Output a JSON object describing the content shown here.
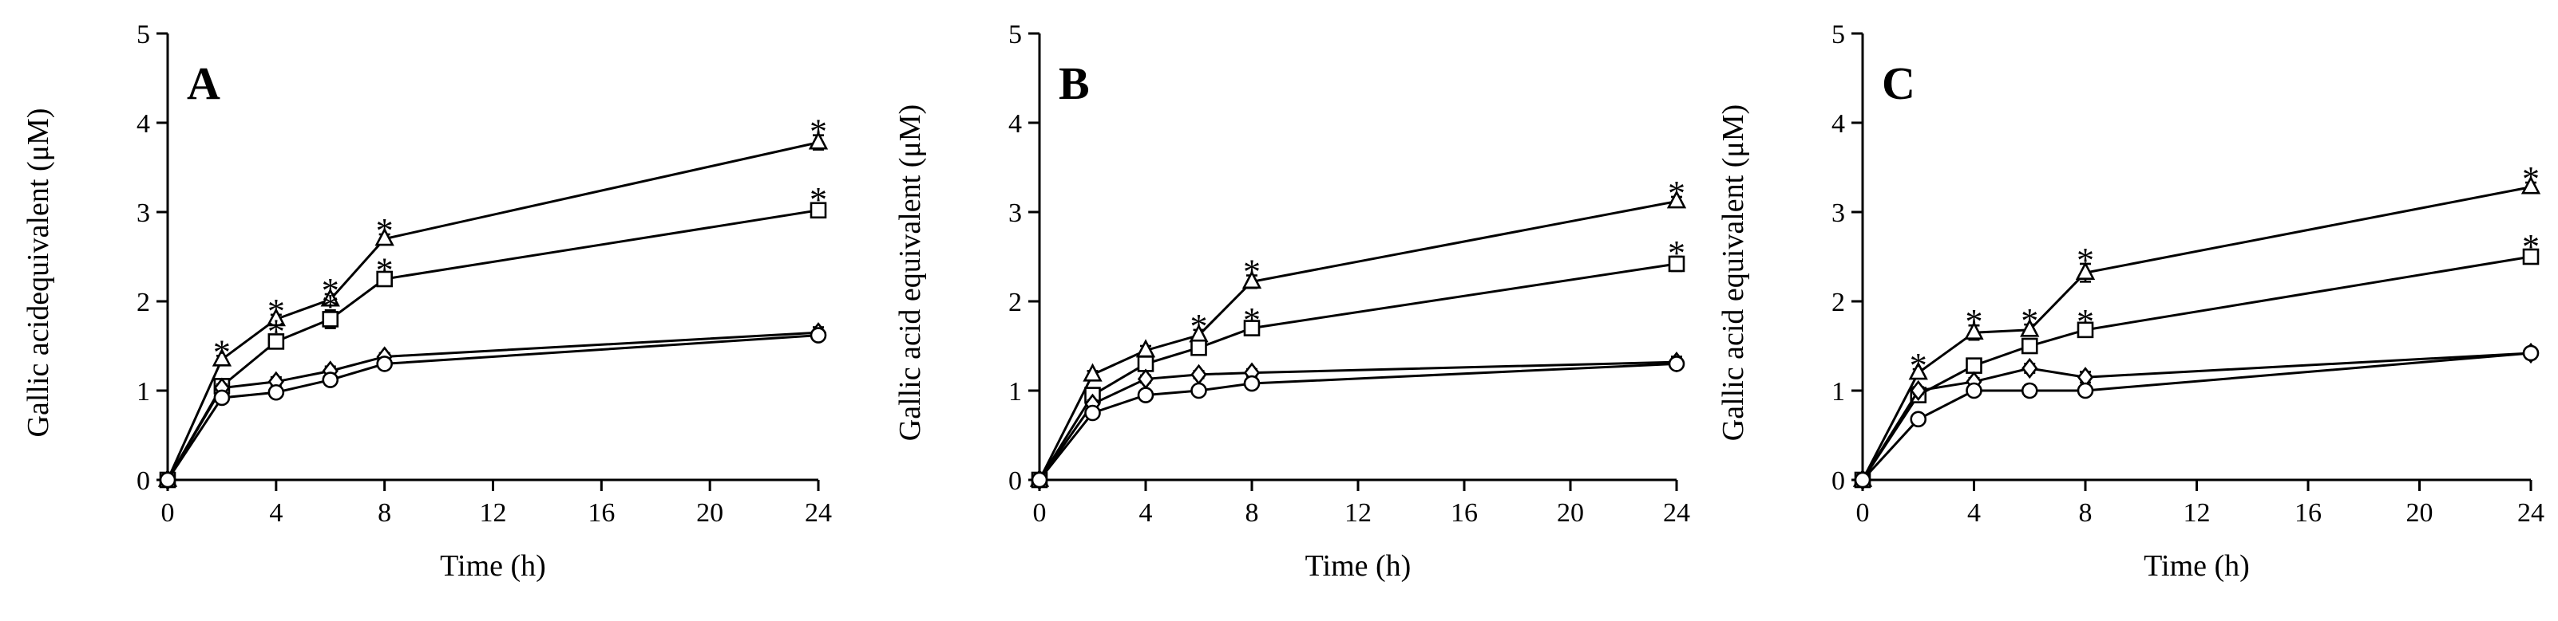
{
  "chart_data": [
    {
      "type": "line",
      "panel": "A",
      "xlabel": "Time (h)",
      "ylabel": "Gallic acidequivalent (μM)",
      "xlim": [
        0,
        24
      ],
      "ylim": [
        0,
        5
      ],
      "x_ticks": [
        "0",
        "4",
        "8",
        "12",
        "16",
        "20",
        "24"
      ],
      "y_ticks": [
        "0",
        "1",
        "2",
        "3",
        "4",
        "5"
      ],
      "x": [
        0,
        2,
        4,
        6,
        8,
        24
      ],
      "series": [
        {
          "name": "triangle",
          "marker": "triangle",
          "values": [
            0,
            1.35,
            1.8,
            2.02,
            2.7,
            3.78
          ],
          "errors": [
            0,
            0.04,
            0.05,
            0.06,
            0.05,
            0.08
          ],
          "significant": [
            false,
            true,
            true,
            true,
            true,
            true
          ]
        },
        {
          "name": "square",
          "marker": "square",
          "values": [
            0,
            1.05,
            1.55,
            1.8,
            2.25,
            3.02
          ],
          "errors": [
            0,
            0.05,
            0.07,
            0.1,
            0.06,
            0.08
          ],
          "significant": [
            false,
            false,
            true,
            true,
            true,
            true
          ]
        },
        {
          "name": "diamond",
          "marker": "diamond",
          "values": [
            0,
            1.03,
            1.1,
            1.22,
            1.38,
            1.65
          ],
          "errors": [
            0,
            0.04,
            0.05,
            0.05,
            0.04,
            0.06
          ],
          "significant": [
            false,
            false,
            false,
            false,
            false,
            false
          ]
        },
        {
          "name": "circle",
          "marker": "circle",
          "values": [
            0,
            0.92,
            0.98,
            1.12,
            1.3,
            1.62
          ],
          "errors": [
            0,
            0.04,
            0.05,
            0.05,
            0.04,
            0.05
          ],
          "significant": [
            false,
            false,
            false,
            false,
            false,
            false
          ]
        }
      ],
      "annotation": "*"
    },
    {
      "type": "line",
      "panel": "B",
      "xlabel": "Time (h)",
      "ylabel": "Gallic acid equivalent (μM)",
      "xlim": [
        0,
        24
      ],
      "ylim": [
        0,
        5
      ],
      "x_ticks": [
        "0",
        "4",
        "8",
        "12",
        "16",
        "20",
        "24"
      ],
      "y_ticks": [
        "0",
        "1",
        "2",
        "3",
        "4",
        "5"
      ],
      "x": [
        0,
        2,
        4,
        6,
        8,
        24
      ],
      "series": [
        {
          "name": "triangle",
          "marker": "triangle",
          "values": [
            0,
            1.18,
            1.45,
            1.62,
            2.22,
            3.12
          ],
          "errors": [
            0,
            0.04,
            0.05,
            0.06,
            0.07,
            0.05
          ],
          "significant": [
            false,
            false,
            false,
            true,
            true,
            true
          ]
        },
        {
          "name": "square",
          "marker": "square",
          "values": [
            0,
            0.95,
            1.3,
            1.48,
            1.7,
            2.42
          ],
          "errors": [
            0,
            0.04,
            0.05,
            0.07,
            0.05,
            0.08
          ],
          "significant": [
            false,
            false,
            false,
            false,
            true,
            true
          ]
        },
        {
          "name": "diamond",
          "marker": "diamond",
          "values": [
            0,
            0.85,
            1.13,
            1.18,
            1.2,
            1.32
          ],
          "errors": [
            0,
            0.04,
            0.04,
            0.04,
            0.04,
            0.06
          ],
          "significant": [
            false,
            false,
            false,
            false,
            false,
            false
          ]
        },
        {
          "name": "circle",
          "marker": "circle",
          "values": [
            0,
            0.75,
            0.95,
            1.0,
            1.08,
            1.3
          ],
          "errors": [
            0,
            0.03,
            0.04,
            0.04,
            0.05,
            0.05
          ],
          "significant": [
            false,
            false,
            false,
            false,
            false,
            false
          ]
        }
      ],
      "annotation": "*"
    },
    {
      "type": "line",
      "panel": "C",
      "xlabel": "Time (h)",
      "ylabel": "Gallic acid equivalent (μM)",
      "xlim": [
        0,
        24
      ],
      "ylim": [
        0,
        5
      ],
      "x_ticks": [
        "0",
        "4",
        "8",
        "12",
        "16",
        "20",
        "24"
      ],
      "y_ticks": [
        "0",
        "1",
        "2",
        "3",
        "4",
        "5"
      ],
      "x": [
        0,
        2,
        4,
        6,
        8,
        24
      ],
      "series": [
        {
          "name": "triangle",
          "marker": "triangle",
          "values": [
            0,
            1.2,
            1.65,
            1.68,
            2.32,
            3.28
          ],
          "errors": [
            0,
            0.04,
            0.08,
            0.06,
            0.1,
            0.05
          ],
          "significant": [
            false,
            true,
            true,
            true,
            true,
            true
          ]
        },
        {
          "name": "square",
          "marker": "square",
          "values": [
            0,
            0.95,
            1.28,
            1.5,
            1.68,
            2.5
          ],
          "errors": [
            0,
            0.04,
            0.05,
            0.06,
            0.05,
            0.07
          ],
          "significant": [
            false,
            false,
            false,
            false,
            true,
            true
          ]
        },
        {
          "name": "diamond",
          "marker": "diamond",
          "values": [
            0,
            1.0,
            1.1,
            1.25,
            1.15,
            1.42
          ],
          "errors": [
            0,
            0.04,
            0.04,
            0.05,
            0.06,
            0.06
          ],
          "significant": [
            false,
            false,
            false,
            false,
            false,
            false
          ]
        },
        {
          "name": "circle",
          "marker": "circle",
          "values": [
            0,
            0.68,
            1.0,
            1.0,
            1.0,
            1.42
          ],
          "errors": [
            0,
            0.03,
            0.05,
            0.06,
            0.05,
            0.05
          ],
          "significant": [
            false,
            false,
            false,
            false,
            false,
            false
          ]
        }
      ],
      "annotation": "*"
    }
  ]
}
